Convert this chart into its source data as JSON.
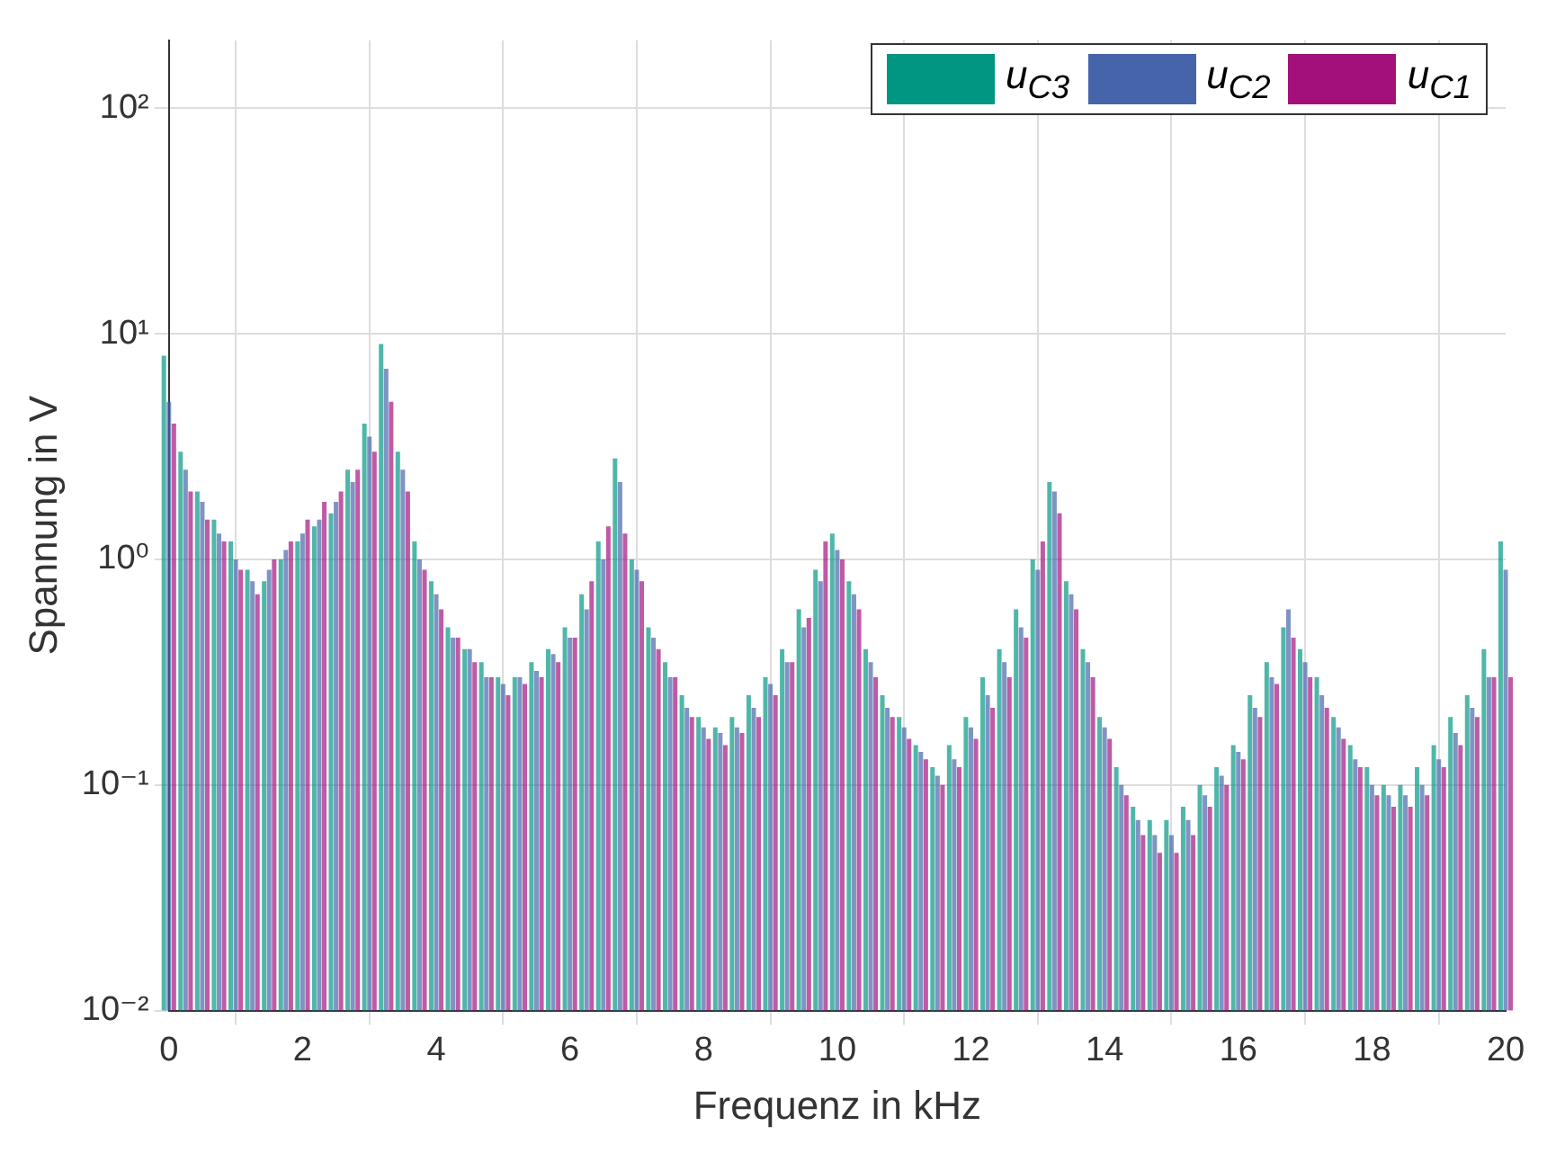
{
  "chart_data": {
    "type": "bar",
    "xlabel": "Frequenz in kHz",
    "ylabel": "Spannung in V",
    "log": "y",
    "grid": true,
    "legend": "top right",
    "x": [
      0,
      0.25,
      0.5,
      0.75,
      1,
      1.25,
      1.5,
      1.75,
      2,
      2.25,
      2.5,
      2.75,
      3,
      3.25,
      3.5,
      3.75,
      4,
      4.25,
      4.5,
      4.75,
      5,
      5.25,
      5.5,
      5.75,
      6,
      6.25,
      6.5,
      6.75,
      7,
      7.25,
      7.5,
      7.75,
      8,
      8.25,
      8.5,
      8.75,
      9,
      9.25,
      9.5,
      9.75,
      10,
      10.25,
      10.5,
      10.75,
      11,
      11.25,
      11.5,
      11.75,
      12,
      12.25,
      12.5,
      12.75,
      13,
      13.25,
      13.5,
      13.75,
      14,
      14.25,
      14.5,
      14.75,
      15,
      15.25,
      15.5,
      15.75,
      16,
      16.25,
      16.5,
      16.75,
      17,
      17.25,
      17.5,
      17.75,
      18,
      18.25,
      18.5,
      18.75,
      19,
      19.25,
      19.5,
      19.75,
      20
    ],
    "xlim": [
      0,
      20
    ],
    "xticks": [
      0,
      2,
      4,
      6,
      8,
      10,
      12,
      14,
      16,
      18,
      20
    ],
    "ylim": [
      0.01,
      200
    ],
    "yticks": [
      {
        "value": 0.01,
        "label": "10⁻²"
      },
      {
        "value": 0.1,
        "label": "10⁻¹"
      },
      {
        "value": 1,
        "label": "10⁰"
      },
      {
        "value": 10,
        "label": "10¹"
      },
      {
        "value": 100,
        "label": "10²"
      }
    ],
    "series": [
      {
        "name": "u$_{C3}$",
        "color": "#009682",
        "values": [
          8,
          3,
          2,
          1.5,
          1.2,
          0.9,
          0.8,
          1,
          1.2,
          1.4,
          1.6,
          2.5,
          4,
          9,
          3,
          1.2,
          0.8,
          0.5,
          0.4,
          0.35,
          0.3,
          0.3,
          0.35,
          0.4,
          0.5,
          0.7,
          1.2,
          2.8,
          1,
          0.5,
          0.35,
          0.25,
          0.2,
          0.18,
          0.2,
          0.25,
          0.3,
          0.4,
          0.6,
          0.9,
          1.3,
          0.8,
          0.4,
          0.25,
          0.2,
          0.15,
          0.12,
          0.15,
          0.2,
          0.3,
          0.4,
          0.6,
          1,
          2.2,
          0.8,
          0.4,
          0.2,
          0.12,
          0.08,
          0.07,
          0.07,
          0.08,
          0.1,
          0.12,
          0.15,
          0.25,
          0.35,
          0.5,
          0.4,
          0.3,
          0.2,
          0.15,
          0.12,
          0.1,
          0.1,
          0.12,
          0.15,
          0.2,
          0.25,
          0.4,
          1.2
        ]
      },
      {
        "name": "u$_{C2}$",
        "color": "#4664aa",
        "values": [
          5,
          2.5,
          1.8,
          1.3,
          1,
          0.8,
          0.9,
          1.1,
          1.3,
          1.5,
          1.8,
          2.2,
          3.5,
          7,
          2.5,
          1,
          0.7,
          0.45,
          0.4,
          0.3,
          0.28,
          0.3,
          0.32,
          0.38,
          0.45,
          0.6,
          1,
          2.2,
          0.9,
          0.45,
          0.3,
          0.22,
          0.18,
          0.17,
          0.18,
          0.22,
          0.28,
          0.35,
          0.5,
          0.8,
          1.1,
          0.7,
          0.35,
          0.22,
          0.18,
          0.14,
          0.11,
          0.13,
          0.18,
          0.25,
          0.35,
          0.5,
          0.9,
          2,
          0.7,
          0.35,
          0.18,
          0.1,
          0.07,
          0.06,
          0.06,
          0.07,
          0.09,
          0.11,
          0.14,
          0.22,
          0.3,
          0.6,
          0.35,
          0.25,
          0.18,
          0.13,
          0.1,
          0.09,
          0.09,
          0.1,
          0.13,
          0.17,
          0.22,
          0.3,
          0.9
        ]
      },
      {
        "name": "u$_{C1}$",
        "color": "#a3107c",
        "values": [
          4,
          2,
          1.5,
          1.2,
          0.9,
          0.7,
          1,
          1.2,
          1.5,
          1.8,
          2,
          2.5,
          3,
          5,
          2,
          0.9,
          0.6,
          0.45,
          0.35,
          0.3,
          0.25,
          0.28,
          0.3,
          0.35,
          0.45,
          0.8,
          1.4,
          1.3,
          0.8,
          0.4,
          0.3,
          0.2,
          0.16,
          0.15,
          0.17,
          0.2,
          0.25,
          0.35,
          0.55,
          1.2,
          1,
          0.6,
          0.3,
          0.2,
          0.16,
          0.13,
          0.1,
          0.12,
          0.16,
          0.22,
          0.3,
          0.45,
          1.2,
          1.6,
          0.6,
          0.3,
          0.16,
          0.09,
          0.06,
          0.05,
          0.05,
          0.06,
          0.08,
          0.1,
          0.13,
          0.2,
          0.28,
          0.45,
          0.3,
          0.22,
          0.16,
          0.12,
          0.09,
          0.08,
          0.08,
          0.09,
          0.12,
          0.15,
          0.2,
          0.3,
          0.3
        ]
      }
    ]
  }
}
